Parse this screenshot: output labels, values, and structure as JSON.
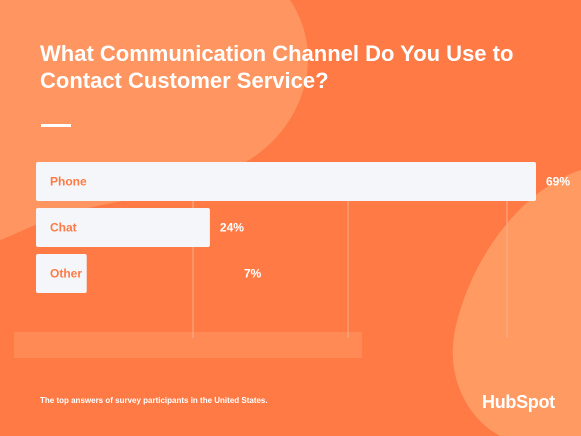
{
  "chart_data": {
    "type": "bar",
    "title": "What Communication Channel Do You Use to Contact Customer Service?",
    "categories": [
      "Phone",
      "Chat",
      "Other"
    ],
    "values": [
      69,
      24,
      7
    ],
    "value_labels": [
      "69%",
      "24%",
      "7%"
    ],
    "orientation": "horizontal",
    "xlim": [
      0,
      69
    ],
    "grid": true,
    "colors": {
      "bar": "#f4f6fa",
      "label": "#ff7a45",
      "value_label": "#ffffff",
      "gridline": "#f7b08a"
    }
  },
  "footnote": "The top answers of survey participants in the United States.",
  "brand": "HubSpot",
  "colors": {
    "background": "#ff7a45",
    "blob_light": "#ff9a63",
    "blob_dark": "#ff6d3a"
  }
}
